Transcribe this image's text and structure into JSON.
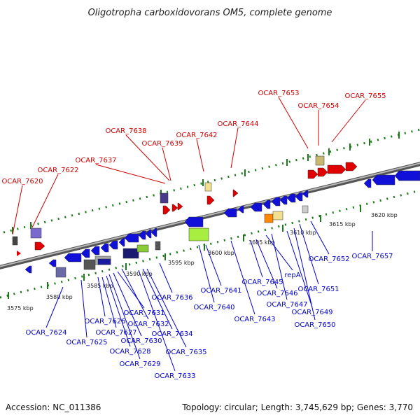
{
  "title": "Oligotropha carboxidovorans OM5, complete genome",
  "footer": {
    "accession": "Accession: NC_011386",
    "summary": "Topology: circular; Length: 3,745,629 bp; Genes: 3,770"
  },
  "colors": {
    "forward_label": "#cc0000",
    "reverse_label": "#0000cc",
    "backbone": "#8a8a8a",
    "tick": "#1a7a1a"
  },
  "scale": {
    "top": [
      "3595 kbp",
      "3600 kbp",
      "3605 kbp",
      "3610 kbp",
      "3615 kbp",
      "3620 kbp"
    ],
    "bottom": [
      "3575 kbp",
      "3580 kbp",
      "3585 kbp",
      "3590 kbp"
    ]
  },
  "labels_forward": [
    "OCAR_7620",
    "OCAR_7622",
    "OCAR_7637",
    "OCAR_7638",
    "OCAR_7639",
    "OCAR_7642",
    "OCAR_7644",
    "OCAR_7653",
    "OCAR_7654",
    "OCAR_7655"
  ],
  "labels_reverse": [
    "OCAR_7624",
    "OCAR_7625",
    "OCAR_7626",
    "OCAR_7627",
    "OCAR_7628",
    "OCAR_7629",
    "OCAR_7630",
    "OCAR_7631",
    "OCAR_7632",
    "OCAR_7633",
    "OCAR_7634",
    "OCAR_7635",
    "OCAR_7636",
    "OCAR_7640",
    "OCAR_7641",
    "OCAR_7643",
    "OCAR_7645",
    "OCAR_7646",
    "repA",
    "OCAR_7647",
    "OCAR_7649",
    "OCAR_7650",
    "OCAR_7651",
    "OCAR_7652",
    "OCAR_7657"
  ]
}
